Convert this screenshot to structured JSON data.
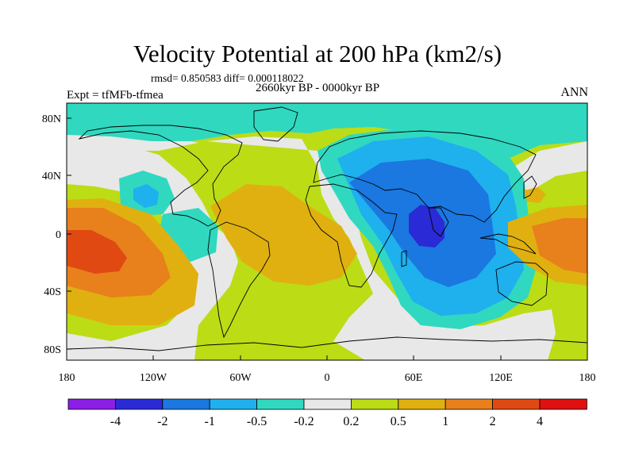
{
  "title": "Velocity Potential at 200 hPa (km2/s)",
  "stats": "rmsd= 0.850583 diff= 0.000118022",
  "period": "2660kyr BP - 0000kyr BP",
  "experiment": "Expt = tfMFb-tfmea",
  "season": "ANN",
  "lat_ticks": [
    "80N",
    "40N",
    "0",
    "40S",
    "80S"
  ],
  "lon_ticks": [
    "180",
    "120W",
    "60W",
    "0",
    "60E",
    "120E",
    "180"
  ],
  "colorbar": {
    "labels": [
      "-4",
      "-2",
      "-1",
      "-0.5",
      "-0.2",
      "0.2",
      "0.5",
      "1",
      "2",
      "4"
    ],
    "colors": [
      "#8c1fe6",
      "#2a2ad6",
      "#1a78e0",
      "#1fb0ee",
      "#30d8c0",
      "#e8e8e8",
      "#bcdc16",
      "#e0b010",
      "#e8801c",
      "#e04a12",
      "#e01010"
    ]
  },
  "palette": {
    "teal": "#30d8c0",
    "light_blue": "#1fb0ee",
    "mid_blue": "#1a78e0",
    "dark_blue": "#2a2ad6",
    "gray": "#e8e8e8",
    "yellow_green": "#bcdc16",
    "gold": "#e0b010",
    "orange": "#e8801c",
    "red_orange": "#e04a12"
  }
}
